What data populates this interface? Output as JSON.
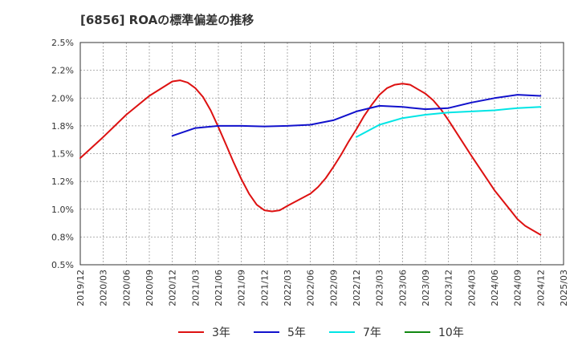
{
  "chart_data": {
    "type": "line",
    "title": "[6856]  ROAの標準偏差の推移",
    "xlabel": "",
    "ylabel": "",
    "x_ticks": [
      "2019/12",
      "2020/03",
      "2020/06",
      "2020/09",
      "2020/12",
      "2021/03",
      "2021/06",
      "2021/09",
      "2021/12",
      "2022/03",
      "2022/06",
      "2022/09",
      "2022/12",
      "2023/03",
      "2023/06",
      "2023/09",
      "2023/12",
      "2024/03",
      "2024/06",
      "2024/09",
      "2024/12",
      "2025/03"
    ],
    "y_ticks": [
      "0.5%",
      "0.8%",
      "1.0%",
      "1.2%",
      "1.5%",
      "1.8%",
      "2.0%",
      "2.2%",
      "2.5%"
    ],
    "ylim": [
      0.5,
      2.5
    ],
    "grid": true,
    "legend_position": "bottom",
    "series": [
      {
        "name": "3年",
        "color": "#dd1111",
        "x": [
          "2019/12",
          "2020/03",
          "2020/06",
          "2020/09",
          "2020/12",
          "2021/01",
          "2021/02",
          "2021/03",
          "2021/04",
          "2021/05",
          "2021/06",
          "2021/07",
          "2021/08",
          "2021/09",
          "2021/10",
          "2021/11",
          "2021/12",
          "2022/01",
          "2022/02",
          "2022/03",
          "2022/06",
          "2022/07",
          "2022/08",
          "2022/09",
          "2022/10",
          "2022/11",
          "2022/12",
          "2023/01",
          "2023/02",
          "2023/03",
          "2023/04",
          "2023/05",
          "2023/06",
          "2023/07",
          "2023/08",
          "2023/09",
          "2023/10",
          "2023/11",
          "2023/12",
          "2024/03",
          "2024/06",
          "2024/09",
          "2024/10",
          "2024/11",
          "2024/12"
        ],
        "values": [
          1.46,
          1.65,
          1.85,
          2.02,
          2.15,
          2.16,
          2.14,
          2.09,
          2.01,
          1.89,
          1.74,
          1.58,
          1.42,
          1.27,
          1.14,
          1.04,
          0.99,
          0.98,
          0.99,
          1.03,
          1.14,
          1.2,
          1.28,
          1.38,
          1.49,
          1.61,
          1.72,
          1.84,
          1.94,
          2.03,
          2.09,
          2.12,
          2.13,
          2.12,
          2.08,
          2.04,
          1.98,
          1.9,
          1.8,
          1.48,
          1.17,
          0.91,
          0.85,
          0.81,
          0.77
        ]
      },
      {
        "name": "5年",
        "color": "#1111cc",
        "x": [
          "2020/12",
          "2021/03",
          "2021/06",
          "2021/09",
          "2021/12",
          "2022/03",
          "2022/06",
          "2022/09",
          "2022/12",
          "2023/03",
          "2023/06",
          "2023/09",
          "2023/12",
          "2024/03",
          "2024/06",
          "2024/09",
          "2024/12"
        ],
        "values": [
          1.66,
          1.73,
          1.75,
          1.75,
          1.745,
          1.75,
          1.76,
          1.8,
          1.88,
          1.93,
          1.92,
          1.9,
          1.91,
          1.96,
          2.0,
          2.03,
          2.02
        ]
      },
      {
        "name": "7年",
        "color": "#00e5e5",
        "x": [
          "2022/12",
          "2023/03",
          "2023/06",
          "2023/09",
          "2023/12",
          "2024/03",
          "2024/06",
          "2024/09",
          "2024/12"
        ],
        "values": [
          1.65,
          1.76,
          1.82,
          1.85,
          1.87,
          1.88,
          1.89,
          1.91,
          1.92
        ]
      },
      {
        "name": "10年",
        "color": "#118811",
        "x": [],
        "values": []
      }
    ]
  }
}
